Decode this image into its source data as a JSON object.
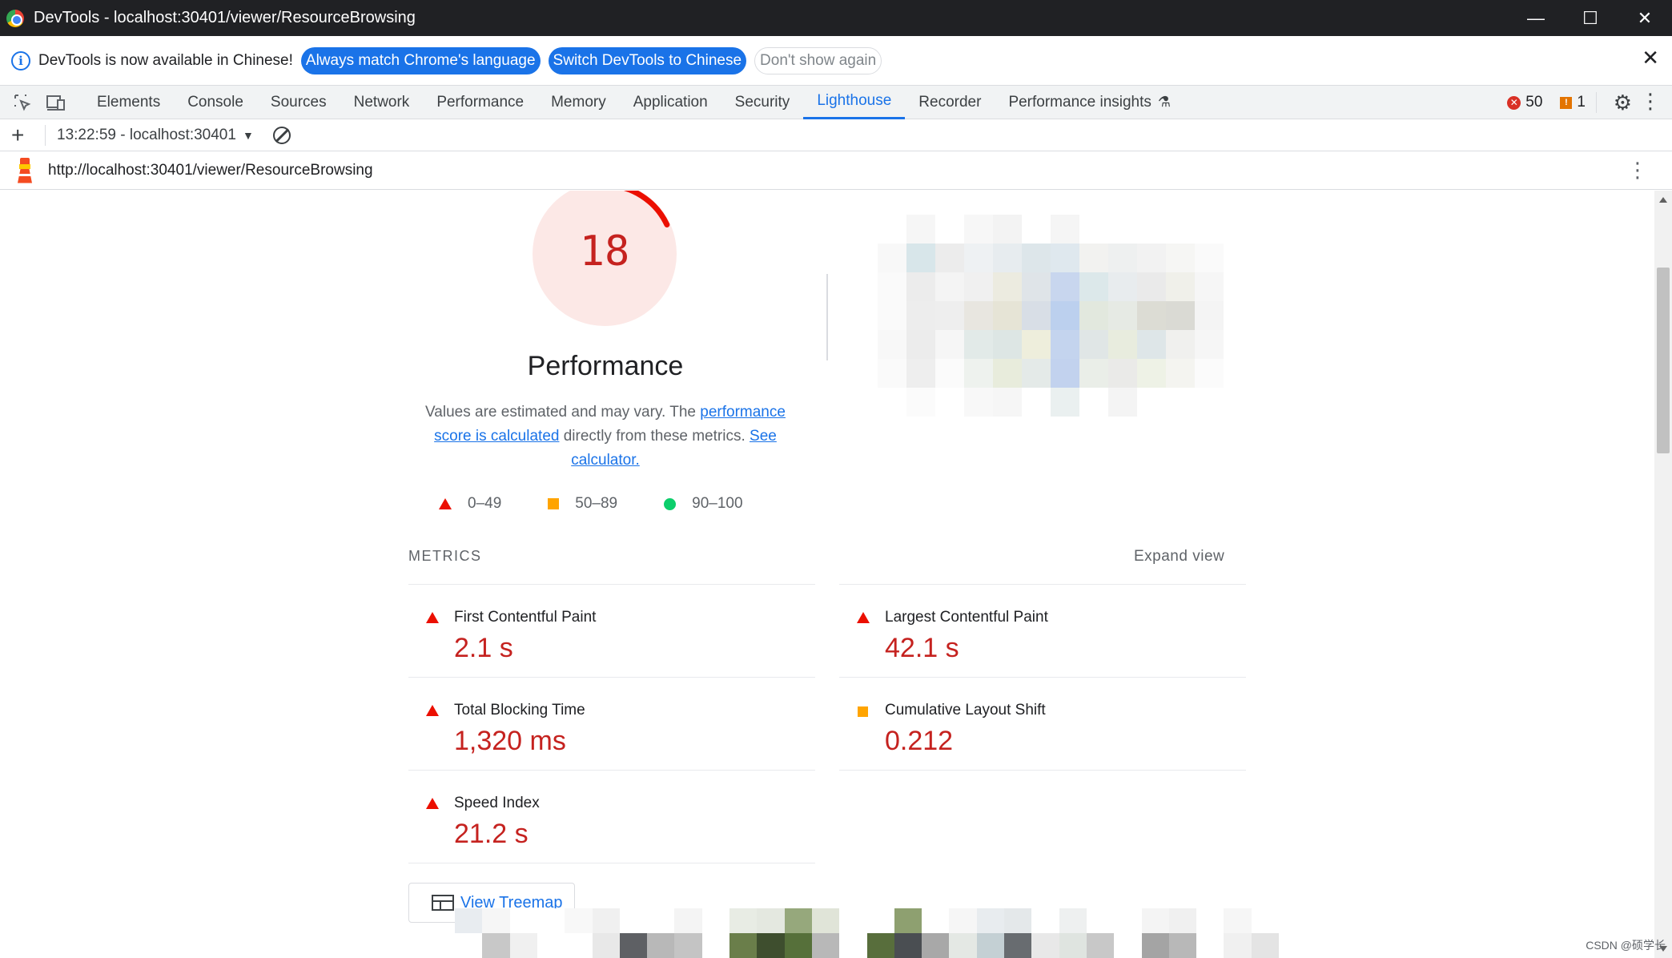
{
  "window": {
    "title": "DevTools - localhost:30401/viewer/ResourceBrowsing",
    "minimize": "—",
    "maximize": "☐",
    "close": "✕"
  },
  "infobar": {
    "message": "DevTools is now available in Chinese!",
    "button_match": "Always match Chrome's language",
    "button_switch": "Switch DevTools to Chinese",
    "button_dismiss": "Don't show again",
    "close": "✕"
  },
  "tabbar": {
    "tabs": [
      "Elements",
      "Console",
      "Sources",
      "Network",
      "Performance",
      "Memory",
      "Application",
      "Security",
      "Lighthouse",
      "Recorder",
      "Performance insights"
    ],
    "active_tab": "Lighthouse",
    "error_count": "50",
    "warning_count": "1"
  },
  "lighthouse_toolbar": {
    "report_label": "13:22:59 - localhost:30401"
  },
  "urlbar": {
    "url": "http://localhost:30401/viewer/ResourceBrowsing"
  },
  "gauge": {
    "score": "18",
    "score_fraction": 0.18,
    "title": "Performance",
    "color": "#c5221f",
    "bg_color": "#fce8e6"
  },
  "description": {
    "text1": "Values are estimated and may vary. The ",
    "link1": "performance score is calculated",
    "text2": " directly from these metrics. ",
    "link2": "See calculator."
  },
  "legend": {
    "fail": "0–49",
    "average": "50–89",
    "pass": "90–100"
  },
  "metrics": {
    "heading": "METRICS",
    "expand": "Expand view",
    "items": [
      {
        "label": "First Contentful Paint",
        "value": "2.1 s",
        "status": "fail"
      },
      {
        "label": "Largest Contentful Paint",
        "value": "42.1 s",
        "status": "fail"
      },
      {
        "label": "Total Blocking Time",
        "value": "1,320 ms",
        "status": "fail"
      },
      {
        "label": "Cumulative Layout Shift",
        "value": "0.212",
        "status": "average"
      },
      {
        "label": "Speed Index",
        "value": "21.2 s",
        "status": "fail"
      }
    ]
  },
  "treemap": {
    "label": "View Treemap"
  },
  "watermark": "CSDN @硕学长",
  "colors": {
    "fail": "#eb0f00",
    "average": "#ffa400",
    "pass": "#0cce6b",
    "accent": "#1a73e8"
  }
}
